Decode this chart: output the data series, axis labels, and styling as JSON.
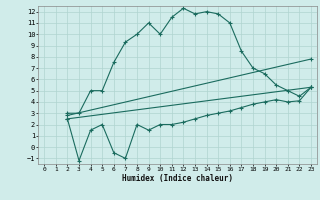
{
  "xlabel": "Humidex (Indice chaleur)",
  "bg_color": "#d0ecea",
  "grid_color": "#b0d4d0",
  "line_color": "#1a6b5e",
  "xlim": [
    -0.5,
    23.5
  ],
  "ylim": [
    -1.5,
    12.5
  ],
  "xticks": [
    0,
    1,
    2,
    3,
    4,
    5,
    6,
    7,
    8,
    9,
    10,
    11,
    12,
    13,
    14,
    15,
    16,
    17,
    18,
    19,
    20,
    21,
    22,
    23
  ],
  "yticks": [
    -1,
    0,
    1,
    2,
    3,
    4,
    5,
    6,
    7,
    8,
    9,
    10,
    11,
    12
  ],
  "series1_x": [
    2,
    3,
    4,
    5,
    6,
    7,
    8,
    9,
    10,
    11,
    12,
    13,
    14,
    15,
    16,
    17,
    18,
    19,
    20,
    21,
    22,
    23
  ],
  "series1_y": [
    3,
    3,
    5,
    5,
    7.5,
    9.3,
    10.0,
    11.0,
    10.0,
    11.5,
    12.3,
    11.8,
    12.0,
    11.8,
    11.0,
    8.5,
    7.0,
    6.5,
    5.5,
    5.0,
    4.5,
    5.3
  ],
  "series2_x": [
    2,
    3,
    4,
    5,
    6,
    7,
    8,
    9,
    10,
    11,
    12,
    13,
    14,
    15,
    16,
    17,
    18,
    19,
    20,
    21,
    22,
    23
  ],
  "series2_y": [
    2.5,
    -1.2,
    1.5,
    2.0,
    -0.5,
    -1.0,
    2.0,
    1.5,
    2.0,
    2.0,
    2.2,
    2.5,
    2.8,
    3.0,
    3.2,
    3.5,
    3.8,
    4.0,
    4.2,
    4.0,
    4.1,
    5.3
  ],
  "series3_x": [
    2,
    23
  ],
  "series3_y": [
    2.5,
    5.3
  ],
  "series4_x": [
    2,
    23
  ],
  "series4_y": [
    2.8,
    7.8
  ]
}
